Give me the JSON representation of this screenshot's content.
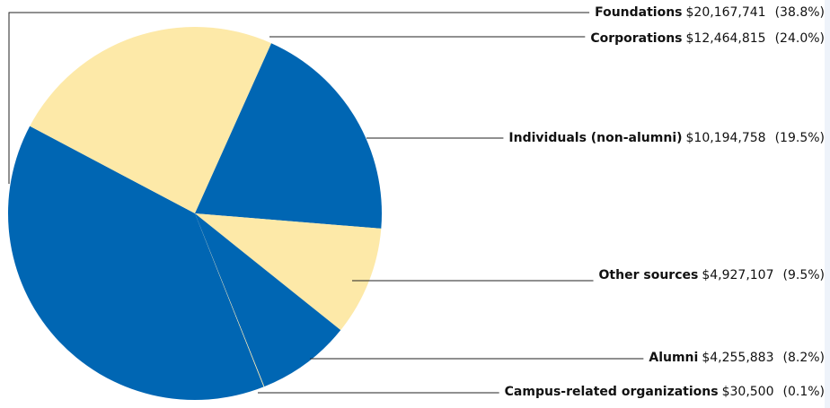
{
  "chart_data": {
    "type": "pie",
    "categories": [
      "Foundations",
      "Corporations",
      "Individuals (non-alumni)",
      "Other sources",
      "Alumni",
      "Campus-related organizations"
    ],
    "values": [
      20167741,
      12464815,
      10194758,
      4927107,
      4255883,
      30500
    ],
    "value_labels": [
      "$20,167,741",
      "$12,464,815",
      "$10,194,758",
      "$4,927,107",
      "$4,255,883",
      "$30,500"
    ],
    "shares": [
      38.8,
      24.0,
      19.5,
      9.5,
      8.2,
      0.1
    ],
    "share_labels": [
      "(38.8%)",
      "(24.0%)",
      "(19.5%)",
      "(9.5%)",
      "(8.2%)",
      "(0.1%)"
    ],
    "colors": [
      "#0066b3",
      "#fde9a8",
      "#0066b3",
      "#fde9a8",
      "#0066b3",
      "#fde9a8"
    ]
  }
}
